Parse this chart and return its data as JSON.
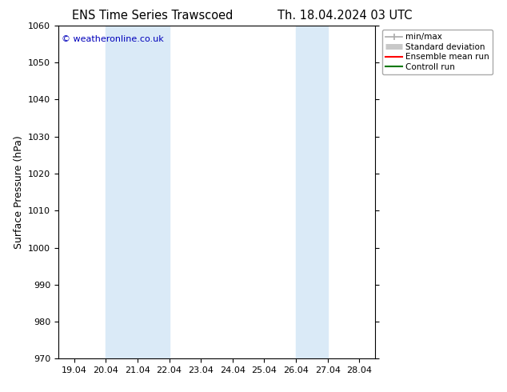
{
  "title_left": "ENS Time Series Trawscoed",
  "title_right": "Th. 18.04.2024 03 UTC",
  "ylabel": "Surface Pressure (hPa)",
  "ylim": [
    970,
    1060
  ],
  "yticks": [
    970,
    980,
    990,
    1000,
    1010,
    1020,
    1030,
    1040,
    1050,
    1060
  ],
  "xtick_labels": [
    "19.04",
    "20.04",
    "21.04",
    "22.04",
    "23.04",
    "24.04",
    "25.04",
    "26.04",
    "27.04",
    "28.04"
  ],
  "xtick_positions": [
    0,
    1,
    2,
    3,
    4,
    5,
    6,
    7,
    8,
    9
  ],
  "xlim_start": -0.5,
  "xlim_end": 9.5,
  "shade_bands": [
    {
      "xstart": 1,
      "xend": 3,
      "color": "#daeaf7"
    },
    {
      "xstart": 7,
      "xend": 8,
      "color": "#daeaf7"
    }
  ],
  "copyright_text": "© weatheronline.co.uk",
  "copyright_color": "#0000bb",
  "legend_entries": [
    {
      "label": "min/max",
      "color": "#aaaaaa",
      "lw": 1.2
    },
    {
      "label": "Standard deviation",
      "color": "#c8c8c8",
      "lw": 5
    },
    {
      "label": "Ensemble mean run",
      "color": "#ff0000",
      "lw": 1.5
    },
    {
      "label": "Controll run",
      "color": "#007700",
      "lw": 1.5
    }
  ],
  "bg_color": "#ffffff",
  "axis_bg_color": "#ffffff",
  "title_fontsize": 10.5,
  "label_fontsize": 9,
  "tick_fontsize": 8,
  "legend_fontsize": 7.5
}
